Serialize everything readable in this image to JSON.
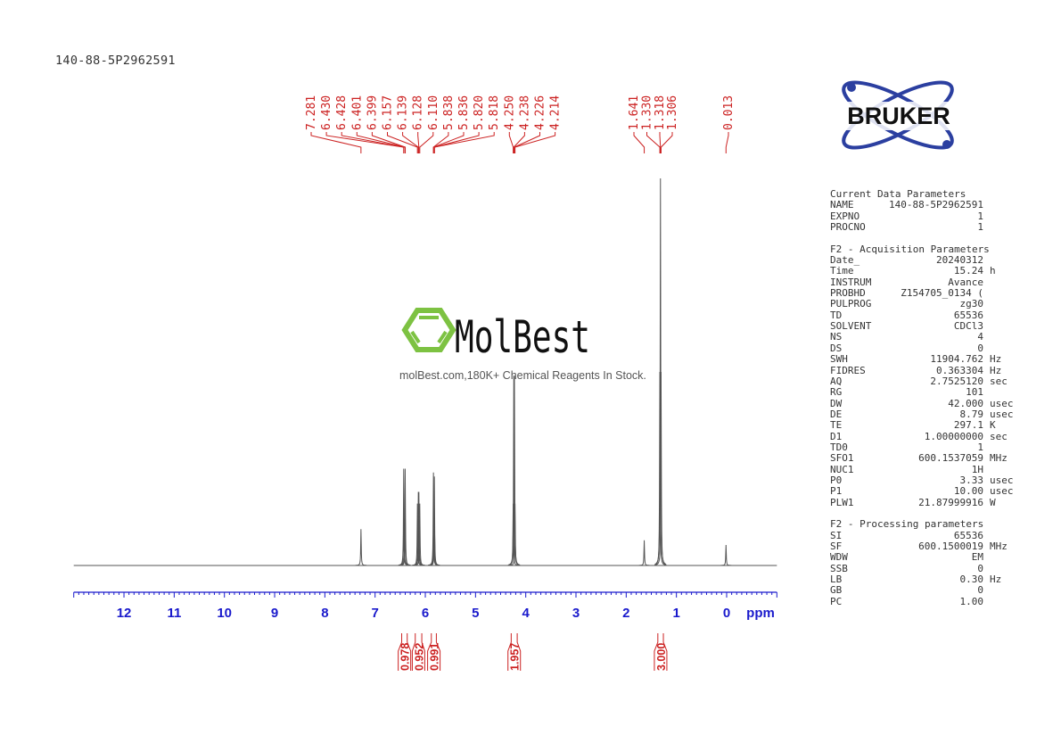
{
  "sample_id": "140-88-5P2962591",
  "logos": {
    "bruker": "BRUKER",
    "molbest": "MolBest",
    "molbest_tagline": "molBest.com,180K+ Chemical Reagents In Stock."
  },
  "colors": {
    "axis": "#1a1acc",
    "labels": "#cc2222",
    "spectrum": "#555555",
    "molbest_green": "#7dc242",
    "bruker_blue": "#2b3fa0"
  },
  "parameters": {
    "sections": [
      {
        "title": "Current Data Parameters",
        "rows": [
          [
            "NAME",
            "140-88-5P2962591",
            ""
          ],
          [
            "EXPNO",
            "1",
            ""
          ],
          [
            "PROCNO",
            "1",
            ""
          ]
        ]
      },
      {
        "title": "F2 - Acquisition Parameters",
        "rows": [
          [
            "Date_",
            "20240312",
            ""
          ],
          [
            "Time",
            "15.24",
            "h"
          ],
          [
            "INSTRUM",
            "Avance",
            ""
          ],
          [
            "PROBHD",
            "Z154705_0134 (",
            ""
          ],
          [
            "PULPROG",
            "zg30",
            ""
          ],
          [
            "TD",
            "65536",
            ""
          ],
          [
            "SOLVENT",
            "CDCl3",
            ""
          ],
          [
            "NS",
            "4",
            ""
          ],
          [
            "DS",
            "0",
            ""
          ],
          [
            "SWH",
            "11904.762",
            "Hz"
          ],
          [
            "FIDRES",
            "0.363304",
            "Hz"
          ],
          [
            "AQ",
            "2.7525120",
            "sec"
          ],
          [
            "RG",
            "101",
            ""
          ],
          [
            "DW",
            "42.000",
            "usec"
          ],
          [
            "DE",
            "8.79",
            "usec"
          ],
          [
            "TE",
            "297.1",
            "K"
          ],
          [
            "D1",
            "1.00000000",
            "sec"
          ],
          [
            "TD0",
            "1",
            ""
          ],
          [
            "SFO1",
            "600.1537059",
            "MHz"
          ],
          [
            "NUC1",
            "1H",
            ""
          ],
          [
            "P0",
            "3.33",
            "usec"
          ],
          [
            "P1",
            "10.00",
            "usec"
          ],
          [
            "PLW1",
            "21.87999916",
            "W"
          ]
        ]
      },
      {
        "title": "F2 - Processing parameters",
        "rows": [
          [
            "SI",
            "65536",
            ""
          ],
          [
            "SF",
            "600.1500019",
            "MHz"
          ],
          [
            "WDW",
            "EM",
            ""
          ],
          [
            "SSB",
            "0",
            ""
          ],
          [
            "LB",
            "0.30",
            "Hz"
          ],
          [
            "GB",
            "0",
            ""
          ],
          [
            "PC",
            "1.00",
            ""
          ]
        ]
      }
    ]
  },
  "chart_data": {
    "type": "line",
    "title": "",
    "xlabel": "ppm",
    "xlim": [
      13.0,
      -1.0
    ],
    "x_reversed": true,
    "grid": false,
    "x_ticks": [
      "12",
      "11",
      "10",
      "9",
      "8",
      "7",
      "6",
      "5",
      "4",
      "3",
      "2",
      "1",
      "0"
    ],
    "peak_labels": [
      "7.281",
      "6.430",
      "6.428",
      "6.401",
      "6.399",
      "6.157",
      "6.139",
      "6.128",
      "6.110",
      "5.838",
      "5.836",
      "5.820",
      "5.818",
      "4.250",
      "4.238",
      "4.226",
      "4.214",
      "1.641",
      "1.330",
      "1.318",
      "1.306",
      "0.013"
    ],
    "peaks": [
      {
        "ppm": 7.281,
        "intensity": 0.094
      },
      {
        "ppm": 6.43,
        "intensity": 0.25
      },
      {
        "ppm": 6.428,
        "intensity": 0.12
      },
      {
        "ppm": 6.401,
        "intensity": 0.25
      },
      {
        "ppm": 6.399,
        "intensity": 0.12
      },
      {
        "ppm": 6.157,
        "intensity": 0.16
      },
      {
        "ppm": 6.139,
        "intensity": 0.19
      },
      {
        "ppm": 6.128,
        "intensity": 0.19
      },
      {
        "ppm": 6.11,
        "intensity": 0.16
      },
      {
        "ppm": 5.838,
        "intensity": 0.24
      },
      {
        "ppm": 5.836,
        "intensity": 0.12
      },
      {
        "ppm": 5.82,
        "intensity": 0.23
      },
      {
        "ppm": 5.818,
        "intensity": 0.12
      },
      {
        "ppm": 4.25,
        "intensity": 0.16
      },
      {
        "ppm": 4.238,
        "intensity": 0.49
      },
      {
        "ppm": 4.226,
        "intensity": 0.49
      },
      {
        "ppm": 4.214,
        "intensity": 0.16
      },
      {
        "ppm": 1.641,
        "intensity": 0.065
      },
      {
        "ppm": 1.33,
        "intensity": 0.5
      },
      {
        "ppm": 1.318,
        "intensity": 1.0
      },
      {
        "ppm": 1.306,
        "intensity": 0.5
      },
      {
        "ppm": 0.013,
        "intensity": 0.053
      }
    ],
    "integrals": [
      {
        "from": 6.47,
        "to": 6.36,
        "value": "0.978"
      },
      {
        "from": 6.2,
        "to": 6.07,
        "value": "0.952"
      },
      {
        "from": 5.88,
        "to": 5.78,
        "value": "0.991"
      },
      {
        "from": 4.29,
        "to": 4.17,
        "value": "1.957"
      },
      {
        "from": 1.37,
        "to": 1.26,
        "value": "3.000"
      }
    ]
  }
}
